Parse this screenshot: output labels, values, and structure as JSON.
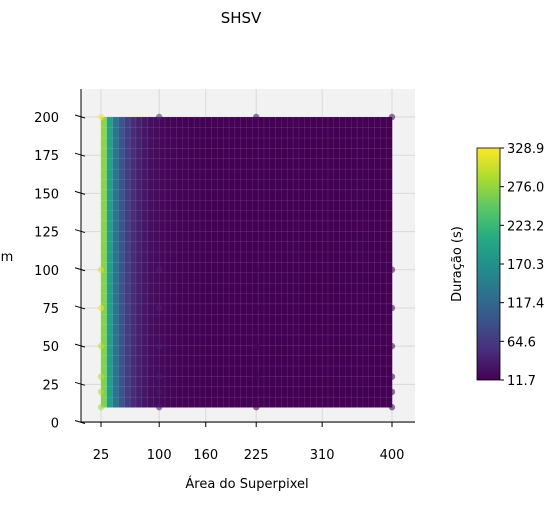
{
  "chart_data": {
    "type": "surface3d",
    "title": "SHSV",
    "xlabel": "Área do Superpixel",
    "ylabel": "m",
    "zlabel": "Duração (s)",
    "x_ticks": [
      25,
      100,
      160,
      225,
      310,
      400
    ],
    "y_ticks": [
      0,
      25,
      50,
      75,
      100,
      125,
      150,
      175,
      200
    ],
    "xlim": [
      25,
      400
    ],
    "ylim": [
      10,
      200
    ],
    "colorbar": {
      "label": "Duração (s)",
      "colormap": "viridis",
      "ticks": [
        "11.7",
        "64.6",
        "117.4",
        "170.3",
        "223.2",
        "276.0",
        "328.9"
      ],
      "min": 11.7,
      "max": 328.9
    },
    "surface_model": "duration ≈ 11.7 + 317.2·exp(-(area-25)/20), nearly independent of m",
    "sample_points": [
      {
        "x": 25,
        "y": 200,
        "z": 328.9
      },
      {
        "x": 25,
        "y": 100,
        "z": 310.0
      },
      {
        "x": 25,
        "y": 75,
        "z": 320.0
      },
      {
        "x": 25,
        "y": 50,
        "z": 300.0
      },
      {
        "x": 25,
        "y": 30,
        "z": 295.0
      },
      {
        "x": 25,
        "y": 20,
        "z": 290.0
      },
      {
        "x": 25,
        "y": 10,
        "z": 285.0
      },
      {
        "x": 100,
        "y": 200,
        "z": 45.0
      },
      {
        "x": 100,
        "y": 100,
        "z": 42.0
      },
      {
        "x": 100,
        "y": 75,
        "z": 40.0
      },
      {
        "x": 100,
        "y": 50,
        "z": 40.0
      },
      {
        "x": 100,
        "y": 30,
        "z": 38.0
      },
      {
        "x": 100,
        "y": 20,
        "z": 36.0
      },
      {
        "x": 100,
        "y": 10,
        "z": 35.0
      },
      {
        "x": 225,
        "y": 200,
        "z": 18.0
      },
      {
        "x": 225,
        "y": 100,
        "z": 16.0
      },
      {
        "x": 225,
        "y": 75,
        "z": 15.0
      },
      {
        "x": 225,
        "y": 50,
        "z": 15.0
      },
      {
        "x": 225,
        "y": 30,
        "z": 14.0
      },
      {
        "x": 225,
        "y": 20,
        "z": 14.0
      },
      {
        "x": 225,
        "y": 10,
        "z": 13.0
      },
      {
        "x": 400,
        "y": 200,
        "z": 14.0
      },
      {
        "x": 400,
        "y": 100,
        "z": 13.0
      },
      {
        "x": 400,
        "y": 75,
        "z": 13.0
      },
      {
        "x": 400,
        "y": 50,
        "z": 12.5
      },
      {
        "x": 400,
        "y": 30,
        "z": 12.0
      },
      {
        "x": 400,
        "y": 20,
        "z": 12.0
      },
      {
        "x": 400,
        "y": 10,
        "z": 11.7
      }
    ]
  }
}
